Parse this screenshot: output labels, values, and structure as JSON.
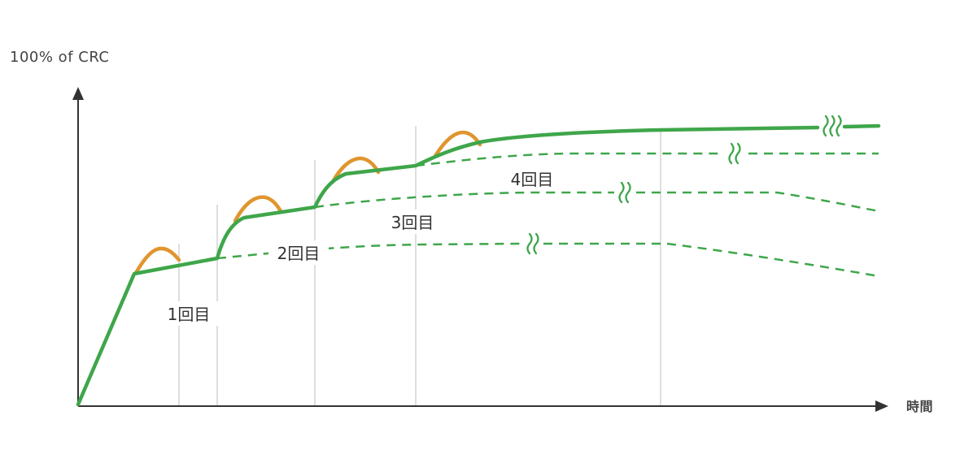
{
  "y_axis_label": "100% of CRC",
  "x_axis_label": "時間",
  "rounds": [
    {
      "label": "1回目"
    },
    {
      "label": "2回目"
    },
    {
      "label": "3回目"
    },
    {
      "label": "4回目"
    }
  ],
  "colors": {
    "main_line": "#3fa64a",
    "dashed_line": "#3fa64a",
    "peak": "#e0952e",
    "axis": "#333333",
    "vline": "#c8c8c8",
    "text": "#333333"
  },
  "icons": [
    "break-squiggle-icon"
  ]
}
